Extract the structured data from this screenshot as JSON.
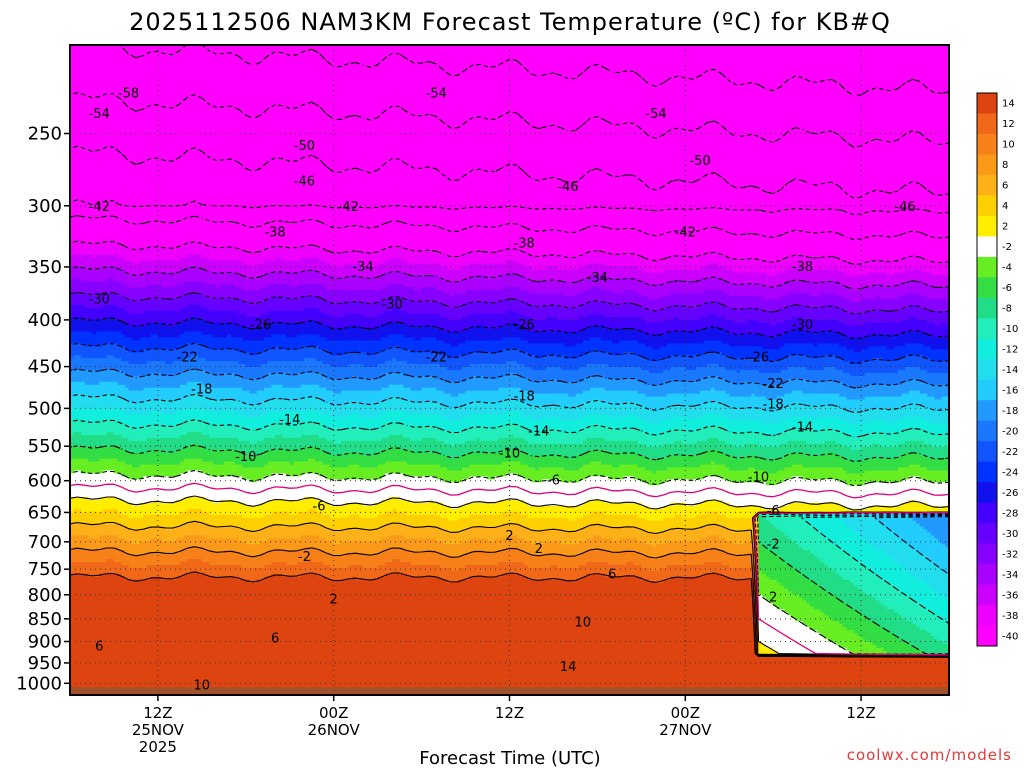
{
  "chart_data": {
    "type": "heatmap",
    "title": "2025112506 NAM3KM Forecast Temperature (ºC) for KB#Q",
    "xlabel": "Forecast Time (UTC)",
    "ylabel": "",
    "credit": "coolwx.com/models",
    "y_axis": {
      "scale": "log-pressure",
      "ylim": [
        1030,
        200
      ],
      "ticks": [
        250,
        300,
        350,
        400,
        450,
        500,
        550,
        600,
        650,
        700,
        750,
        800,
        850,
        900,
        950,
        1000
      ],
      "tick_labels": [
        "250",
        "300",
        "350",
        "400",
        "450",
        "500",
        "550",
        "600",
        "650",
        "700",
        "750",
        "800",
        "850",
        "900",
        "950",
        "1000"
      ]
    },
    "x_axis": {
      "xlim_hours": [
        0,
        60
      ],
      "ticks": [
        {
          "hour": 6,
          "line1": "12Z",
          "line2": "25NOV",
          "line3": "2025"
        },
        {
          "hour": 18,
          "line1": "00Z",
          "line2": "26NOV",
          "line3": ""
        },
        {
          "hour": 30,
          "line1": "12Z",
          "line2": "",
          "line3": ""
        },
        {
          "hour": 42,
          "line1": "00Z",
          "line2": "27NOV",
          "line3": ""
        },
        {
          "hour": 54,
          "line1": "12Z",
          "line2": "",
          "line3": ""
        }
      ]
    },
    "grid": true,
    "colorbar": {
      "placement": "right",
      "levels": [
        {
          "label": "14",
          "color": "#dd4410"
        },
        {
          "label": "12",
          "color": "#f06818"
        },
        {
          "label": "10",
          "color": "#f78018"
        },
        {
          "label": "8",
          "color": "#fa9a18"
        },
        {
          "label": "6",
          "color": "#fdb018"
        },
        {
          "label": "4",
          "color": "#ffd000"
        },
        {
          "label": "2",
          "color": "#ffee00"
        },
        {
          "label": "-2",
          "color": "#ffffff"
        },
        {
          "label": "-4",
          "color": "#66ee22"
        },
        {
          "label": "-6",
          "color": "#33dd44"
        },
        {
          "label": "-8",
          "color": "#22dd88"
        },
        {
          "label": "-10",
          "color": "#22eebb"
        },
        {
          "label": "-12",
          "color": "#11eedd"
        },
        {
          "label": "-14",
          "color": "#22ddee"
        },
        {
          "label": "-16",
          "color": "#22ccff"
        },
        {
          "label": "-18",
          "color": "#2299ff"
        },
        {
          "label": "-20",
          "color": "#1a78ff"
        },
        {
          "label": "-22",
          "color": "#1155ff"
        },
        {
          "label": "-24",
          "color": "#0033ff"
        },
        {
          "label": "-26",
          "color": "#1111ee"
        },
        {
          "label": "-28",
          "color": "#4400ff"
        },
        {
          "label": "-30",
          "color": "#6600ff"
        },
        {
          "label": "-32",
          "color": "#8800ff"
        },
        {
          "label": "-34",
          "color": "#aa00ff"
        },
        {
          "label": "-36",
          "color": "#cc00ff"
        },
        {
          "label": "-38",
          "color": "#ee00ff"
        },
        {
          "label": "-40",
          "color": "#ff00ff"
        }
      ]
    },
    "surface_color": "#a0522d",
    "freezing_line_color": "#e0007a",
    "contour_labels": [
      {
        "text": "-58",
        "hour": 4,
        "p": 226
      },
      {
        "text": "-54",
        "hour": 2,
        "p": 238
      },
      {
        "text": "-54",
        "hour": 25,
        "p": 226
      },
      {
        "text": "-54",
        "hour": 40,
        "p": 238
      },
      {
        "text": "-50",
        "hour": 16,
        "p": 258
      },
      {
        "text": "-50",
        "hour": 43,
        "p": 268
      },
      {
        "text": "-46",
        "hour": 16,
        "p": 282
      },
      {
        "text": "-46",
        "hour": 34,
        "p": 286
      },
      {
        "text": "-46",
        "hour": 57,
        "p": 301
      },
      {
        "text": "-42",
        "hour": 2,
        "p": 301
      },
      {
        "text": "-42",
        "hour": 19,
        "p": 301
      },
      {
        "text": "-42",
        "hour": 42,
        "p": 321
      },
      {
        "text": "-38",
        "hour": 14,
        "p": 321
      },
      {
        "text": "-38",
        "hour": 31,
        "p": 330
      },
      {
        "text": "-38",
        "hour": 50,
        "p": 350
      },
      {
        "text": "-34",
        "hour": 20,
        "p": 350
      },
      {
        "text": "-34",
        "hour": 36,
        "p": 360
      },
      {
        "text": "-30",
        "hour": 2,
        "p": 380
      },
      {
        "text": "-30",
        "hour": 22,
        "p": 385
      },
      {
        "text": "-30",
        "hour": 50,
        "p": 405
      },
      {
        "text": "-26",
        "hour": 13,
        "p": 405
      },
      {
        "text": "-26",
        "hour": 31,
        "p": 405
      },
      {
        "text": "-26",
        "hour": 47,
        "p": 440
      },
      {
        "text": "-22",
        "hour": 8,
        "p": 440
      },
      {
        "text": "-22",
        "hour": 25,
        "p": 440
      },
      {
        "text": "-22",
        "hour": 48,
        "p": 470
      },
      {
        "text": "-18",
        "hour": 9,
        "p": 477
      },
      {
        "text": "-18",
        "hour": 31,
        "p": 485
      },
      {
        "text": "-18",
        "hour": 48,
        "p": 495
      },
      {
        "text": "-14",
        "hour": 15,
        "p": 515
      },
      {
        "text": "-14",
        "hour": 32,
        "p": 530
      },
      {
        "text": "-14",
        "hour": 50,
        "p": 525
      },
      {
        "text": "-10",
        "hour": 12,
        "p": 565
      },
      {
        "text": "-10",
        "hour": 30,
        "p": 560
      },
      {
        "text": "-10",
        "hour": 47,
        "p": 595
      },
      {
        "text": "-6",
        "hour": 17,
        "p": 640
      },
      {
        "text": "-6",
        "hour": 33,
        "p": 600
      },
      {
        "text": "-6",
        "hour": 48,
        "p": 648
      },
      {
        "text": "-2",
        "hour": 16,
        "p": 727
      },
      {
        "text": "-2",
        "hour": 48,
        "p": 705
      },
      {
        "text": "2",
        "hour": 18,
        "p": 810
      },
      {
        "text": "2",
        "hour": 30,
        "p": 690
      },
      {
        "text": "2",
        "hour": 32,
        "p": 713
      },
      {
        "text": "2",
        "hour": 48,
        "p": 805
      },
      {
        "text": "6",
        "hour": 2,
        "p": 912
      },
      {
        "text": "6",
        "hour": 14,
        "p": 893
      },
      {
        "text": "6",
        "hour": 37,
        "p": 760
      },
      {
        "text": "10",
        "hour": 9,
        "p": 1005
      },
      {
        "text": "10",
        "hour": 35,
        "p": 858
      },
      {
        "text": "14",
        "hour": 34,
        "p": 960
      }
    ]
  }
}
